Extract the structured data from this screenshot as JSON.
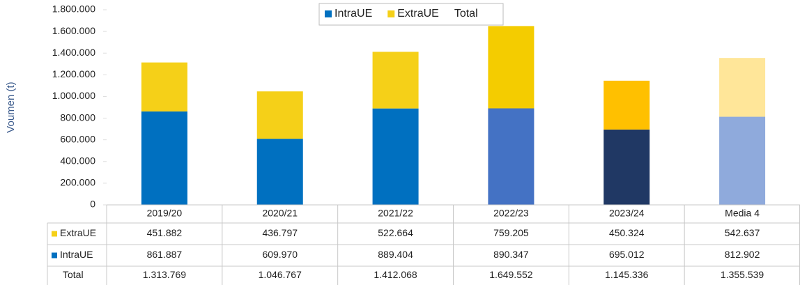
{
  "chart_data": {
    "type": "bar",
    "stacked": true,
    "y_label": "Voumen (t)",
    "categories": [
      "2019/20",
      "2020/21",
      "2021/22",
      "2022/23",
      "2023/24",
      "Media 4"
    ],
    "series": [
      {
        "name": "IntraUE",
        "color": "#0070c0",
        "colors": [
          "#0070c0",
          "#0070c0",
          "#0070c0",
          "#4472c4",
          "#203864",
          "#8faadc"
        ],
        "values": [
          861887,
          609970,
          889404,
          890347,
          695012,
          812902
        ],
        "value_labels": [
          "861.887",
          "609.970",
          "889.404",
          "890.347",
          "695.012",
          "812.902"
        ]
      },
      {
        "name": "ExtraUE",
        "color": "#f5d018",
        "colors": [
          "#f5d018",
          "#f5d018",
          "#f5d018",
          "#f4cc00",
          "#ffc000",
          "#ffe699"
        ],
        "values": [
          451882,
          436797,
          522664,
          759205,
          450324,
          542637
        ],
        "value_labels": [
          "451.882",
          "436.797",
          "522.664",
          "759.205",
          "450.324",
          "542.637"
        ]
      },
      {
        "name": "Total",
        "values": [
          1313769,
          1046767,
          1412068,
          1649552,
          1145336,
          1355539
        ],
        "value_labels": [
          "1.313.769",
          "1.046.767",
          "1.412.068",
          "1.649.552",
          "1.145.336",
          "1.355.539"
        ]
      }
    ],
    "ylim": [
      0,
      1800000
    ],
    "yticks": [
      0,
      {
        "value": 200000,
        "label": "200.000"
      },
      {
        "value": 400000,
        "label": "400.000"
      },
      {
        "value": 600000,
        "label": "600.000"
      },
      {
        "value": 800000,
        "label": "800.000"
      },
      {
        "value": 1000000,
        "label": "1.000.000"
      },
      {
        "value": 1200000,
        "label": "1.200.000"
      },
      {
        "value": 1400000,
        "label": "1.400.000"
      },
      {
        "value": 1600000,
        "label": "1.600.000"
      },
      {
        "value": 1800000,
        "label": "1.800.000"
      }
    ],
    "legend": "top",
    "grid": false
  }
}
